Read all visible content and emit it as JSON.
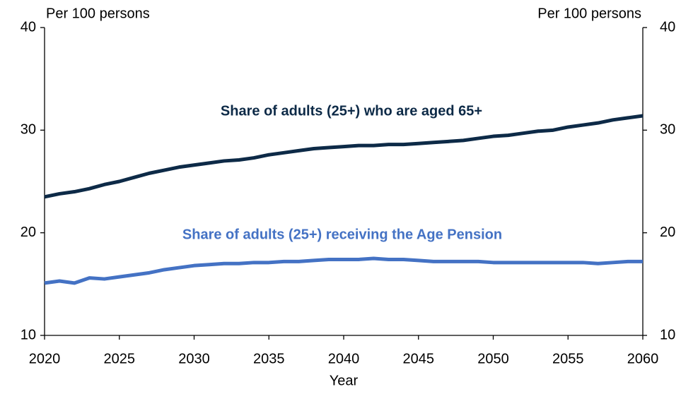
{
  "chart_data": {
    "type": "line",
    "y_label": "Per 100 persons",
    "y2_label": "Per 100 persons",
    "x_label": "Year",
    "x": [
      2020,
      2021,
      2022,
      2023,
      2024,
      2025,
      2026,
      2027,
      2028,
      2029,
      2030,
      2031,
      2032,
      2033,
      2034,
      2035,
      2036,
      2037,
      2038,
      2039,
      2040,
      2041,
      2042,
      2043,
      2044,
      2045,
      2046,
      2047,
      2048,
      2049,
      2050,
      2051,
      2052,
      2053,
      2054,
      2055,
      2056,
      2057,
      2058,
      2059,
      2060
    ],
    "series": [
      {
        "name": "Share of adults (25+) who are aged 65+",
        "color": "#0d2a47",
        "values": [
          23.5,
          23.8,
          24.0,
          24.3,
          24.7,
          25.0,
          25.4,
          25.8,
          26.1,
          26.4,
          26.6,
          26.8,
          27.0,
          27.1,
          27.3,
          27.6,
          27.8,
          28.0,
          28.2,
          28.3,
          28.4,
          28.5,
          28.5,
          28.6,
          28.6,
          28.7,
          28.8,
          28.9,
          29.0,
          29.2,
          29.4,
          29.5,
          29.7,
          29.9,
          30.0,
          30.3,
          30.5,
          30.7,
          31.0,
          31.2,
          31.4
        ]
      },
      {
        "name": "Share of adults (25+) receiving the Age Pension",
        "color": "#4472c4",
        "values": [
          15.1,
          15.3,
          15.1,
          15.6,
          15.5,
          15.7,
          15.9,
          16.1,
          16.4,
          16.6,
          16.8,
          16.9,
          17.0,
          17.0,
          17.1,
          17.1,
          17.2,
          17.2,
          17.3,
          17.4,
          17.4,
          17.4,
          17.5,
          17.4,
          17.4,
          17.3,
          17.2,
          17.2,
          17.2,
          17.2,
          17.1,
          17.1,
          17.1,
          17.1,
          17.1,
          17.1,
          17.1,
          17.0,
          17.1,
          17.2,
          17.2
        ]
      }
    ],
    "xlim": [
      2020,
      2060
    ],
    "xticks": [
      2020,
      2025,
      2030,
      2035,
      2040,
      2045,
      2050,
      2055,
      2060
    ],
    "ylim": [
      10,
      40
    ],
    "yticks": [
      10,
      20,
      30,
      40
    ],
    "y2lim": [
      10,
      40
    ],
    "y2ticks": [
      10,
      20,
      30,
      40
    ],
    "grid": false
  }
}
